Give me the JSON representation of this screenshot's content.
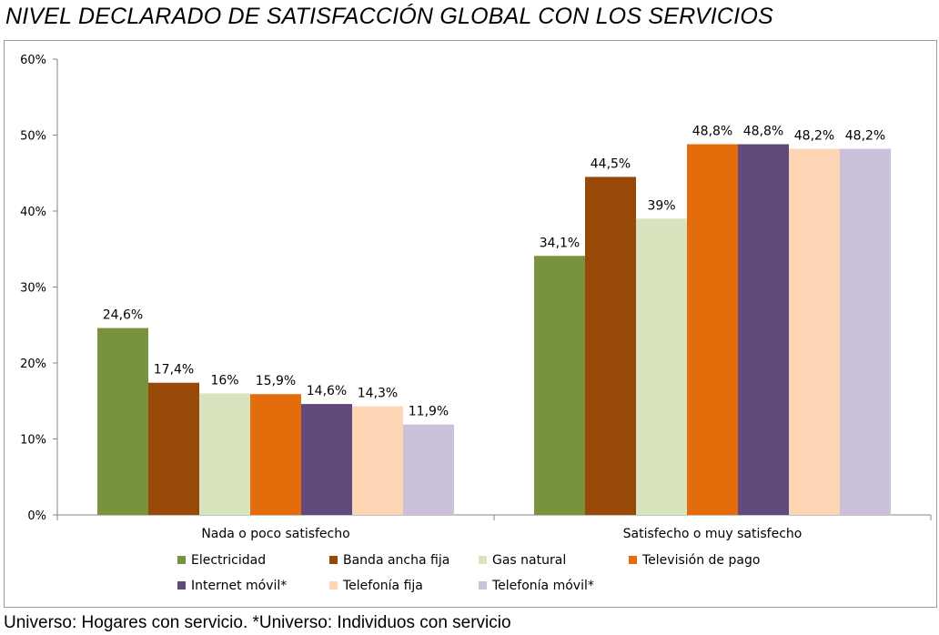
{
  "title": "NIVEL DECLARADO DE SATISFACCIÓN GLOBAL CON LOS SERVICIOS",
  "footnote": "Universo: Hogares con servicio. *Universo: Individuos con servicio",
  "chart_data": {
    "type": "bar",
    "categories": [
      "Nada o poco satisfecho",
      "Satisfecho o muy satisfecho"
    ],
    "series": [
      {
        "name": "Electricidad",
        "color": "#77933c",
        "values": [
          24.6,
          34.1
        ],
        "labels": [
          "24,6%",
          "34,1%"
        ]
      },
      {
        "name": "Banda ancha fija",
        "color": "#984807",
        "values": [
          17.4,
          44.5
        ],
        "labels": [
          "17,4%",
          "44,5%"
        ]
      },
      {
        "name": "Gas natural",
        "color": "#d7e4bd",
        "values": [
          16,
          39
        ],
        "labels": [
          "16%",
          "39%"
        ]
      },
      {
        "name": "Televisión de pago",
        "color": "#e46c0a",
        "values": [
          15.9,
          48.8
        ],
        "labels": [
          "15,9%",
          "48,8%"
        ]
      },
      {
        "name": "Internet móvil*",
        "color": "#604a7b",
        "values": [
          14.6,
          48.8
        ],
        "labels": [
          "14,6%",
          "48,8%"
        ]
      },
      {
        "name": "Telefonía fija",
        "color": "#fcd5b5",
        "values": [
          14.3,
          48.2
        ],
        "labels": [
          "14,3%",
          "48,2%"
        ]
      },
      {
        "name": "Telefonía móvil*",
        "color": "#ccc1da",
        "values": [
          11.9,
          48.2
        ],
        "labels": [
          "11,9%",
          "48,2%"
        ]
      }
    ],
    "ylim": [
      0,
      60
    ],
    "yticks": [
      "0%",
      "10%",
      "20%",
      "30%",
      "40%",
      "50%",
      "60%"
    ],
    "grid": false,
    "legend_position": "bottom"
  }
}
